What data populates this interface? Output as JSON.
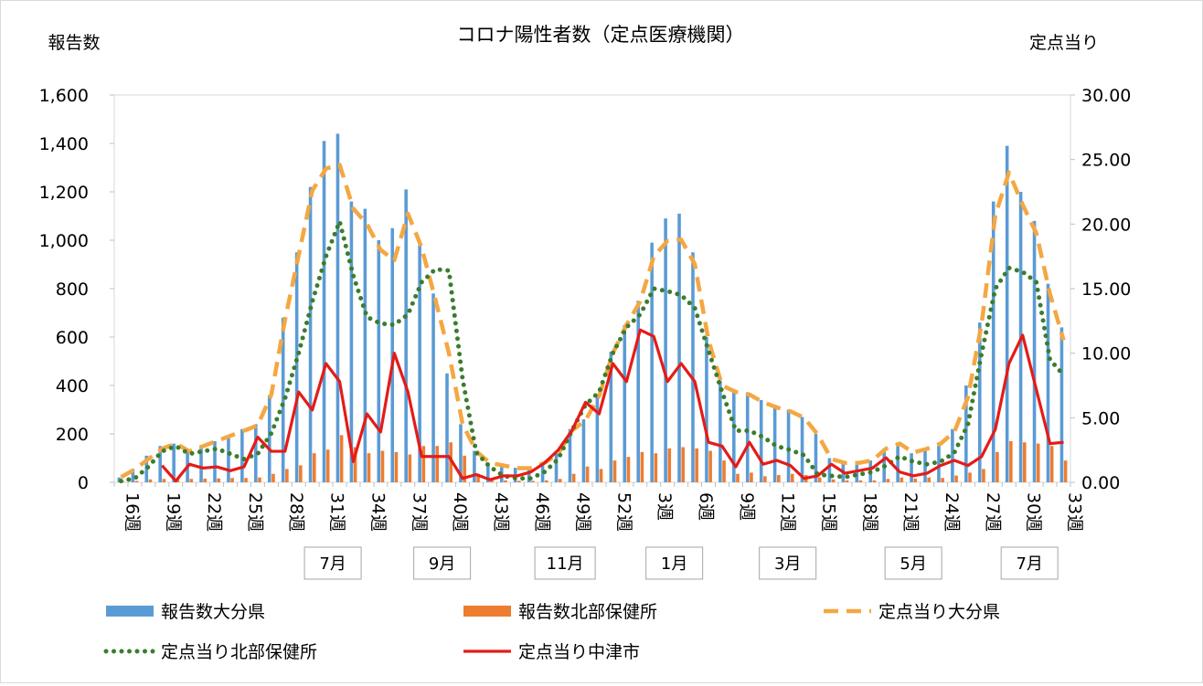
{
  "chart_data": {
    "type": "bar+line",
    "title": "コロナ陽性者数（定点医療機関）",
    "left_axis_label": "報告数",
    "right_axis_label": "定点当り",
    "left_ylim": [
      0,
      1600
    ],
    "right_ylim": [
      0,
      30
    ],
    "left_ticks": [
      "0",
      "200",
      "400",
      "600",
      "800",
      "1,000",
      "1,200",
      "1,400",
      "1,600"
    ],
    "right_ticks": [
      "0.00",
      "5.00",
      "10.00",
      "15.00",
      "20.00",
      "25.00",
      "30.00"
    ],
    "x_tick_labels": [
      {
        "index": 0,
        "label": "16週"
      },
      {
        "index": 3,
        "label": "19週"
      },
      {
        "index": 6,
        "label": "22週"
      },
      {
        "index": 9,
        "label": "25週"
      },
      {
        "index": 12,
        "label": "28週"
      },
      {
        "index": 15,
        "label": "31週"
      },
      {
        "index": 18,
        "label": "34週"
      },
      {
        "index": 21,
        "label": "37週"
      },
      {
        "index": 24,
        "label": "40週"
      },
      {
        "index": 27,
        "label": "43週"
      },
      {
        "index": 30,
        "label": "46週"
      },
      {
        "index": 33,
        "label": "49週"
      },
      {
        "index": 36,
        "label": "52週"
      },
      {
        "index": 39,
        "label": "3週"
      },
      {
        "index": 42,
        "label": "6週"
      },
      {
        "index": 45,
        "label": "9週"
      },
      {
        "index": 48,
        "label": "12週"
      },
      {
        "index": 51,
        "label": "15週"
      },
      {
        "index": 54,
        "label": "18週"
      },
      {
        "index": 57,
        "label": "21週"
      },
      {
        "index": 60,
        "label": "24週"
      },
      {
        "index": 63,
        "label": "27週"
      },
      {
        "index": 66,
        "label": "30週"
      },
      {
        "index": 69,
        "label": "33週"
      }
    ],
    "month_labels": [
      {
        "index": 15.5,
        "label": "7月"
      },
      {
        "index": 23.5,
        "label": "9月"
      },
      {
        "index": 32.5,
        "label": "11月"
      },
      {
        "index": 40.5,
        "label": "1月"
      },
      {
        "index": 48.8,
        "label": "3月"
      },
      {
        "index": 58,
        "label": "5月"
      },
      {
        "index": 66.5,
        "label": "7月"
      }
    ],
    "series": [
      {
        "name": "報告数大分県",
        "kind": "bar",
        "axis": "left",
        "color": "#5b9bd5",
        "values": [
          20,
          55,
          110,
          150,
          160,
          130,
          150,
          170,
          190,
          220,
          240,
          360,
          680,
          950,
          1220,
          1410,
          1440,
          1160,
          1130,
          1000,
          1050,
          1210,
          980,
          780,
          450,
          240,
          130,
          80,
          70,
          60,
          60,
          80,
          120,
          220,
          260,
          360,
          540,
          650,
          750,
          990,
          1090,
          1110,
          950,
          600,
          420,
          380,
          370,
          340,
          320,
          300,
          270,
          200,
          100,
          80,
          80,
          90,
          140,
          160,
          120,
          140,
          160,
          220,
          400,
          660,
          1160,
          1390,
          1200,
          1080,
          820,
          640
        ]
      },
      {
        "name": "報告数北部保健所",
        "kind": "bar",
        "axis": "left",
        "color": "#ed7d31",
        "values": [
          3,
          6,
          12,
          14,
          18,
          14,
          15,
          16,
          18,
          18,
          20,
          35,
          55,
          70,
          120,
          135,
          195,
          145,
          120,
          130,
          125,
          115,
          150,
          150,
          165,
          110,
          35,
          12,
          8,
          6,
          6,
          8,
          14,
          35,
          65,
          55,
          90,
          105,
          125,
          120,
          140,
          145,
          140,
          130,
          90,
          35,
          40,
          25,
          30,
          35,
          30,
          20,
          12,
          8,
          8,
          8,
          14,
          20,
          15,
          20,
          18,
          28,
          40,
          55,
          125,
          170,
          165,
          160,
          150,
          90
        ]
      },
      {
        "name": "定点当り大分県",
        "kind": "line",
        "axis": "right",
        "color": "#f4a742",
        "dash": "dash",
        "values": [
          0.4,
          1.0,
          1.8,
          2.6,
          3.0,
          2.4,
          2.8,
          3.2,
          3.6,
          4.0,
          4.4,
          6.8,
          12.6,
          17.6,
          22.6,
          24.3,
          24.6,
          21.2,
          20.0,
          18.0,
          17.2,
          20.8,
          18.2,
          14.2,
          10.0,
          4.5,
          2.4,
          1.5,
          1.3,
          1.1,
          1.1,
          1.5,
          2.2,
          4.0,
          4.8,
          6.7,
          10.0,
          12.2,
          14.0,
          17.5,
          18.7,
          18.8,
          16.9,
          11.0,
          7.5,
          7.0,
          6.8,
          6.2,
          5.8,
          5.5,
          5.0,
          3.7,
          1.8,
          1.5,
          1.5,
          1.7,
          2.6,
          3.0,
          2.3,
          2.6,
          3.0,
          3.9,
          6.6,
          12.3,
          20.7,
          24.0,
          21.5,
          19.3,
          14.6,
          11.0
        ]
      },
      {
        "name": "定点当り北部保健所",
        "kind": "line",
        "axis": "right",
        "color": "#3a7d2c",
        "dash": "dot",
        "values": [
          0.1,
          0.3,
          1.2,
          2.4,
          2.8,
          2.2,
          2.4,
          2.6,
          2.2,
          1.8,
          2.2,
          3.8,
          6.5,
          10.0,
          14.0,
          17.5,
          20.2,
          16.0,
          12.8,
          12.3,
          12.2,
          13.0,
          15.5,
          16.5,
          16.4,
          8.0,
          2.3,
          1.2,
          0.5,
          0.3,
          0.3,
          0.8,
          1.8,
          4.0,
          6.0,
          7.0,
          10.0,
          12.0,
          13.0,
          15.0,
          14.8,
          14.5,
          13.5,
          10.2,
          7.0,
          4.0,
          4.0,
          3.5,
          2.8,
          2.5,
          2.1,
          0.6,
          0.5,
          0.4,
          0.6,
          0.8,
          1.3,
          2.0,
          1.6,
          1.4,
          1.6,
          2.3,
          4.5,
          10.0,
          15.0,
          16.6,
          16.3,
          15.5,
          9.5,
          8.3
        ]
      },
      {
        "name": "定点当り中津市",
        "kind": "line",
        "axis": "right",
        "color": "#e51b17",
        "dash": "solid",
        "values": [
          null,
          null,
          null,
          1.3,
          0.1,
          1.4,
          1.1,
          1.2,
          0.9,
          1.2,
          3.5,
          2.4,
          2.4,
          7.0,
          5.6,
          9.2,
          7.8,
          1.6,
          5.3,
          3.9,
          10.0,
          7.0,
          2.0,
          2.0,
          2.0,
          0.3,
          0.6,
          0.2,
          0.5,
          0.5,
          0.8,
          1.5,
          2.5,
          4.0,
          6.2,
          5.3,
          9.2,
          7.8,
          11.8,
          11.3,
          7.8,
          9.2,
          7.8,
          3.1,
          2.8,
          1.2,
          3.1,
          1.4,
          1.7,
          1.3,
          0.3,
          0.5,
          1.4,
          0.7,
          0.9,
          1.1,
          1.9,
          0.8,
          0.5,
          0.7,
          1.3,
          1.7,
          1.3,
          2.0,
          4.1,
          9.2,
          11.4,
          7.2,
          3.0,
          3.1
        ]
      }
    ]
  }
}
